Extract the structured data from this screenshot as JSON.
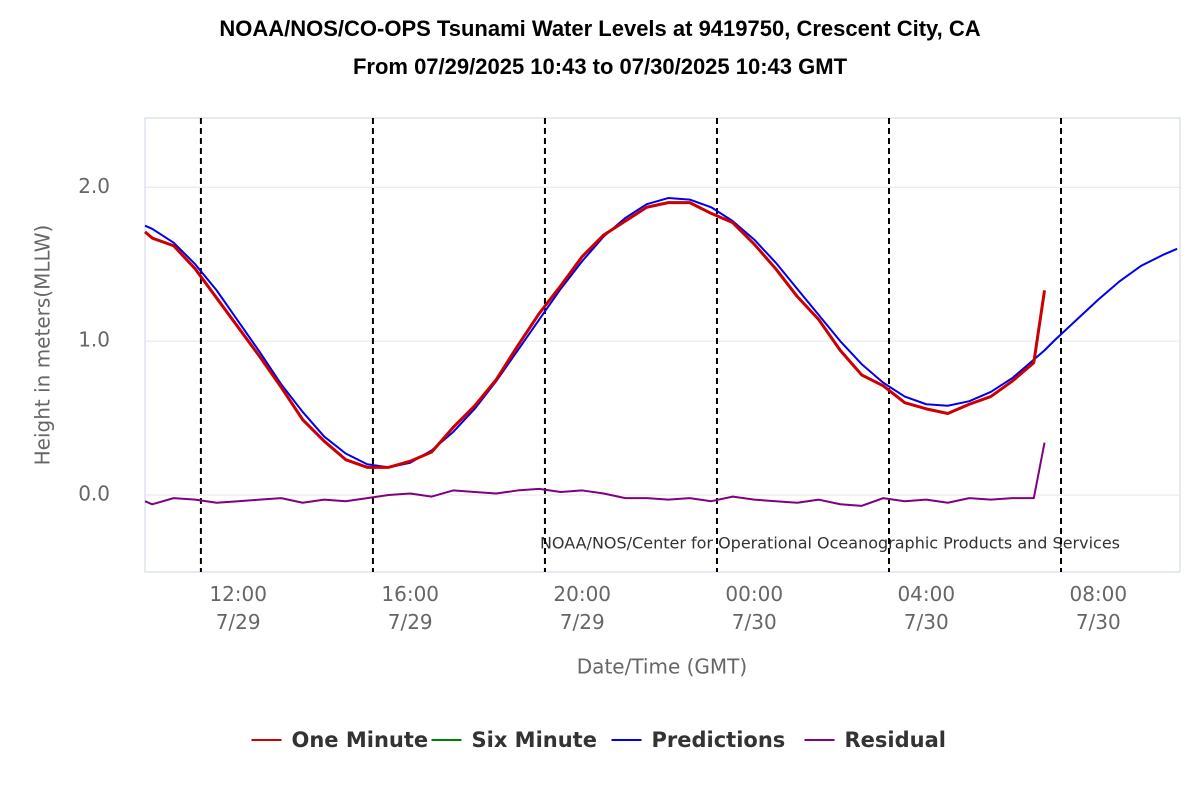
{
  "chart_data": {
    "type": "line",
    "title": "NOAA/NOS/CO-OPS Tsunami Water Levels at 9419750, Crescent City, CA",
    "subtitle": "From 07/29/2025 10:43 to 07/30/2025 10:43 GMT",
    "x_label": "Date/Time (GMT)",
    "y_label": "Height in meters(MLLW)",
    "credit": "NOAA/NOS/Center for Operational Oceanographic Products and Services",
    "xlim": [
      "2025-07-29T09:50",
      "2025-07-30T09:54"
    ],
    "xticks": [
      {
        "value": "2025-07-29T12:00",
        "label": "12:00\n7/29"
      },
      {
        "value": "2025-07-29T16:00",
        "label": "16:00\n7/29"
      },
      {
        "value": "2025-07-29T20:00",
        "label": "20:00\n7/29"
      },
      {
        "value": "2025-07-30T00:00",
        "label": "00:00\n7/30"
      },
      {
        "value": "2025-07-30T04:00",
        "label": "04:00\n7/30"
      },
      {
        "value": "2025-07-30T08:00",
        "label": "08:00\n7/30"
      }
    ],
    "plot_lines": [
      "2025-07-29T11:08",
      "2025-07-29T15:08",
      "2025-07-29T19:08",
      "2025-07-29T23:08",
      "2025-07-30T03:08",
      "2025-07-30T07:08"
    ],
    "ylim": [
      -0.5,
      2.45
    ],
    "yticks": [
      {
        "value": 0,
        "label": "0.0"
      },
      {
        "value": 1,
        "label": "1.0"
      },
      {
        "value": 2,
        "label": "2.0"
      }
    ],
    "grid": true,
    "legend": "bottom",
    "x": [
      "2025-07-29T09:50",
      "2025-07-29T10:00",
      "2025-07-29T10:30",
      "2025-07-29T11:00",
      "2025-07-29T11:30",
      "2025-07-29T12:00",
      "2025-07-29T12:30",
      "2025-07-29T13:00",
      "2025-07-29T13:30",
      "2025-07-29T14:00",
      "2025-07-29T14:30",
      "2025-07-29T15:00",
      "2025-07-29T15:30",
      "2025-07-29T16:00",
      "2025-07-29T16:30",
      "2025-07-29T17:00",
      "2025-07-29T17:30",
      "2025-07-29T18:00",
      "2025-07-29T18:30",
      "2025-07-29T19:00",
      "2025-07-29T19:30",
      "2025-07-29T20:00",
      "2025-07-29T20:30",
      "2025-07-29T21:00",
      "2025-07-29T21:30",
      "2025-07-29T22:00",
      "2025-07-29T22:30",
      "2025-07-29T23:00",
      "2025-07-29T23:30",
      "2025-07-30T00:00",
      "2025-07-30T00:30",
      "2025-07-30T01:00",
      "2025-07-30T01:30",
      "2025-07-30T02:00",
      "2025-07-30T02:30",
      "2025-07-30T03:00",
      "2025-07-30T03:30",
      "2025-07-30T04:00",
      "2025-07-30T04:30",
      "2025-07-30T05:00",
      "2025-07-30T05:30",
      "2025-07-30T06:00",
      "2025-07-30T06:30",
      "2025-07-30T06:45",
      "2025-07-30T07:00",
      "2025-07-30T07:30",
      "2025-07-30T08:00",
      "2025-07-30T08:30",
      "2025-07-30T09:00",
      "2025-07-30T09:30",
      "2025-07-30T09:50"
    ],
    "series": [
      {
        "name": "One Minute",
        "color": "#cc0000",
        "values": [
          1.71,
          1.67,
          1.62,
          1.47,
          1.28,
          1.09,
          0.9,
          0.7,
          0.49,
          0.35,
          0.23,
          0.18,
          0.18,
          0.22,
          0.28,
          0.44,
          0.58,
          0.75,
          0.97,
          1.18,
          1.36,
          1.55,
          1.69,
          1.78,
          1.87,
          1.9,
          1.9,
          1.83,
          1.77,
          1.63,
          1.47,
          1.29,
          1.14,
          0.94,
          0.78,
          0.71,
          0.6,
          0.56,
          0.53,
          0.59,
          0.64,
          0.74,
          0.86,
          1.33,
          null,
          null,
          null,
          null,
          null,
          null,
          null
        ]
      },
      {
        "name": "Six Minute",
        "color": "#008000",
        "values": [
          null,
          null,
          null,
          null,
          null,
          null,
          null,
          null,
          null,
          null,
          null,
          null,
          null,
          null,
          null,
          null,
          null,
          null,
          null,
          null,
          null,
          null,
          null,
          null,
          null,
          null,
          null,
          null,
          null,
          null,
          null,
          null,
          null,
          null,
          null,
          null,
          null,
          null,
          null,
          null,
          null,
          null,
          null,
          null,
          null,
          null,
          null,
          null,
          null,
          null,
          null
        ]
      },
      {
        "name": "Predictions",
        "color": "#0000ee",
        "values": [
          1.75,
          1.73,
          1.64,
          1.5,
          1.33,
          1.13,
          0.93,
          0.72,
          0.54,
          0.38,
          0.27,
          0.2,
          0.18,
          0.21,
          0.29,
          0.41,
          0.56,
          0.74,
          0.94,
          1.14,
          1.34,
          1.52,
          1.68,
          1.8,
          1.89,
          1.93,
          1.92,
          1.87,
          1.78,
          1.66,
          1.51,
          1.34,
          1.17,
          1.0,
          0.85,
          0.73,
          0.64,
          0.59,
          0.58,
          0.61,
          0.67,
          0.76,
          0.88,
          0.94,
          1.01,
          1.14,
          1.27,
          1.39,
          1.49,
          1.56,
          1.6
        ]
      },
      {
        "name": "Residual",
        "color": "#800080",
        "values": [
          -0.04,
          -0.06,
          -0.02,
          -0.03,
          -0.05,
          -0.04,
          -0.03,
          -0.02,
          -0.05,
          -0.03,
          -0.04,
          -0.02,
          0.0,
          0.01,
          -0.01,
          0.03,
          0.02,
          0.01,
          0.03,
          0.04,
          0.02,
          0.03,
          0.01,
          -0.02,
          -0.02,
          -0.03,
          -0.02,
          -0.04,
          -0.01,
          -0.03,
          -0.04,
          -0.05,
          -0.03,
          -0.06,
          -0.07,
          -0.02,
          -0.04,
          -0.03,
          -0.05,
          -0.02,
          -0.03,
          -0.02,
          -0.02,
          0.34,
          null,
          null,
          null,
          null,
          null,
          null,
          null
        ]
      }
    ]
  }
}
